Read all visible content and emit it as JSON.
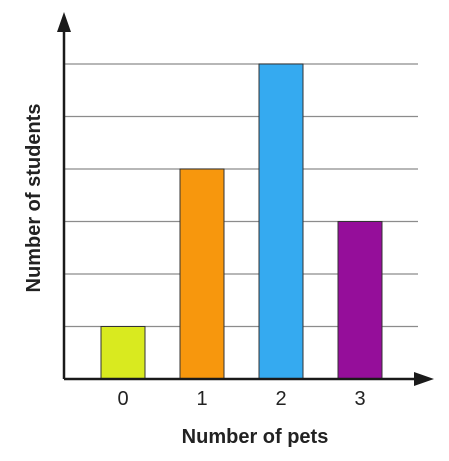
{
  "chart_data": {
    "type": "bar",
    "categories": [
      "0",
      "1",
      "2",
      "3"
    ],
    "values": [
      1,
      4,
      6,
      3
    ],
    "colors": [
      "#d9ea1f",
      "#f7970d",
      "#35aaf0",
      "#950e9a"
    ],
    "xlabel": "Number of pets",
    "ylabel": "Number of students",
    "ylim": [
      0,
      6
    ],
    "ytick_labels_shown": false,
    "grid": true
  }
}
